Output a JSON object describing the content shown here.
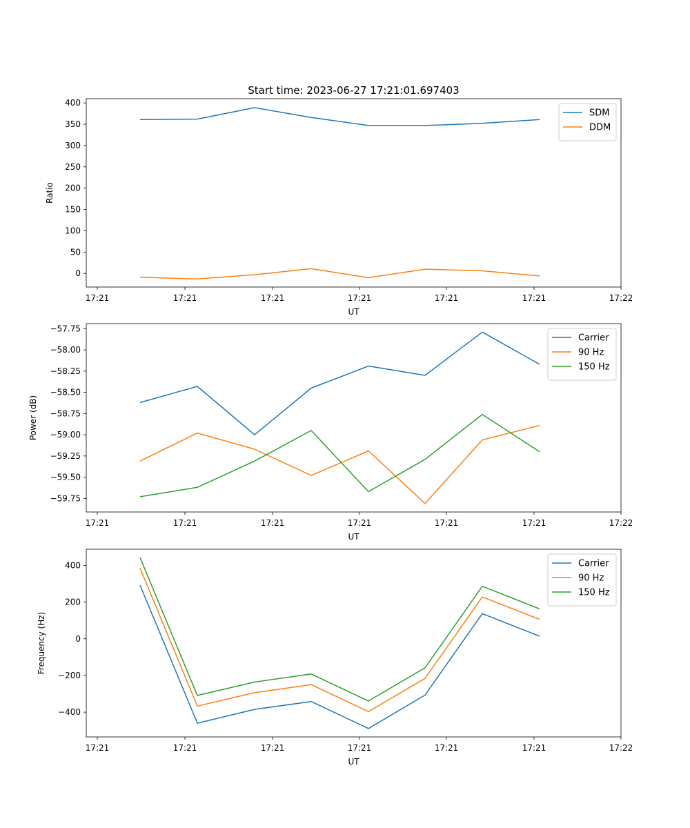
{
  "figure_title": "Start time: 2023-06-27 17:21:01.697403",
  "colors": {
    "blue": "#1f77b4",
    "orange": "#ff7f0e",
    "green": "#2ca02c"
  },
  "chart_data": [
    {
      "type": "line",
      "xlabel": "UT",
      "ylabel": "Ratio",
      "xtick_labels": [
        "17:21",
        "17:21",
        "17:21",
        "17:21",
        "17:21",
        "17:21",
        "17:22"
      ],
      "ylim": [
        -32,
        410
      ],
      "yticks": [
        0,
        50,
        100,
        150,
        200,
        250,
        300,
        350,
        400
      ],
      "ytick_labels": [
        "0",
        "50",
        "100",
        "150",
        "200",
        "250",
        "300",
        "350",
        "400"
      ],
      "legend_position": "upper right",
      "series": [
        {
          "name": "SDM",
          "color": "#1f77b4",
          "values": [
            361,
            362,
            389,
            366,
            347,
            347,
            352,
            361
          ]
        },
        {
          "name": "DDM",
          "color": "#ff7f0e",
          "values": [
            -9,
            -13,
            -3,
            11,
            -10,
            10,
            6,
            -6
          ]
        }
      ]
    },
    {
      "type": "line",
      "xlabel": "UT",
      "ylabel": "Power (dB)",
      "xtick_labels": [
        "17:21",
        "17:21",
        "17:21",
        "17:21",
        "17:21",
        "17:21",
        "17:22"
      ],
      "ylim": [
        -59.91,
        -57.69
      ],
      "yticks": [
        -59.75,
        -59.5,
        -59.25,
        -59.0,
        -58.75,
        -58.5,
        -58.25,
        -58.0,
        -57.75
      ],
      "ytick_labels": [
        "−59.75",
        "−59.50",
        "−59.25",
        "−59.00",
        "−58.75",
        "−58.50",
        "−58.25",
        "−58.00",
        "−57.75"
      ],
      "legend_position": "upper right",
      "series": [
        {
          "name": "Carrier",
          "color": "#1f77b4",
          "values": [
            -58.62,
            -58.43,
            -59.0,
            -58.45,
            -58.19,
            -58.3,
            -57.79,
            -58.17
          ]
        },
        {
          "name": "90 Hz",
          "color": "#ff7f0e",
          "values": [
            -59.31,
            -58.98,
            -59.17,
            -59.48,
            -59.19,
            -59.81,
            -59.06,
            -58.89
          ]
        },
        {
          "name": "150 Hz",
          "color": "#2ca02c",
          "values": [
            -59.73,
            -59.62,
            -59.31,
            -58.95,
            -59.67,
            -59.29,
            -58.76,
            -59.2
          ]
        }
      ]
    },
    {
      "type": "line",
      "xlabel": "UT",
      "ylabel": "Frequency (Hz)",
      "xtick_labels": [
        "17:21",
        "17:21",
        "17:21",
        "17:21",
        "17:21",
        "17:21",
        "17:22"
      ],
      "ylim": [
        -535,
        488
      ],
      "yticks": [
        -400,
        -200,
        0,
        200,
        400
      ],
      "ytick_labels": [
        "−400",
        "−200",
        "0",
        "200",
        "400"
      ],
      "legend_position": "upper right",
      "series": [
        {
          "name": "Carrier",
          "color": "#1f77b4",
          "values": [
            292,
            -460,
            -385,
            -342,
            -489,
            -307,
            137,
            14
          ]
        },
        {
          "name": "90 Hz",
          "color": "#ff7f0e",
          "values": [
            385,
            -367,
            -294,
            -250,
            -397,
            -216,
            228,
            106
          ]
        },
        {
          "name": "150 Hz",
          "color": "#2ca02c",
          "values": [
            442,
            -309,
            -236,
            -192,
            -339,
            -158,
            286,
            163
          ]
        }
      ]
    }
  ]
}
